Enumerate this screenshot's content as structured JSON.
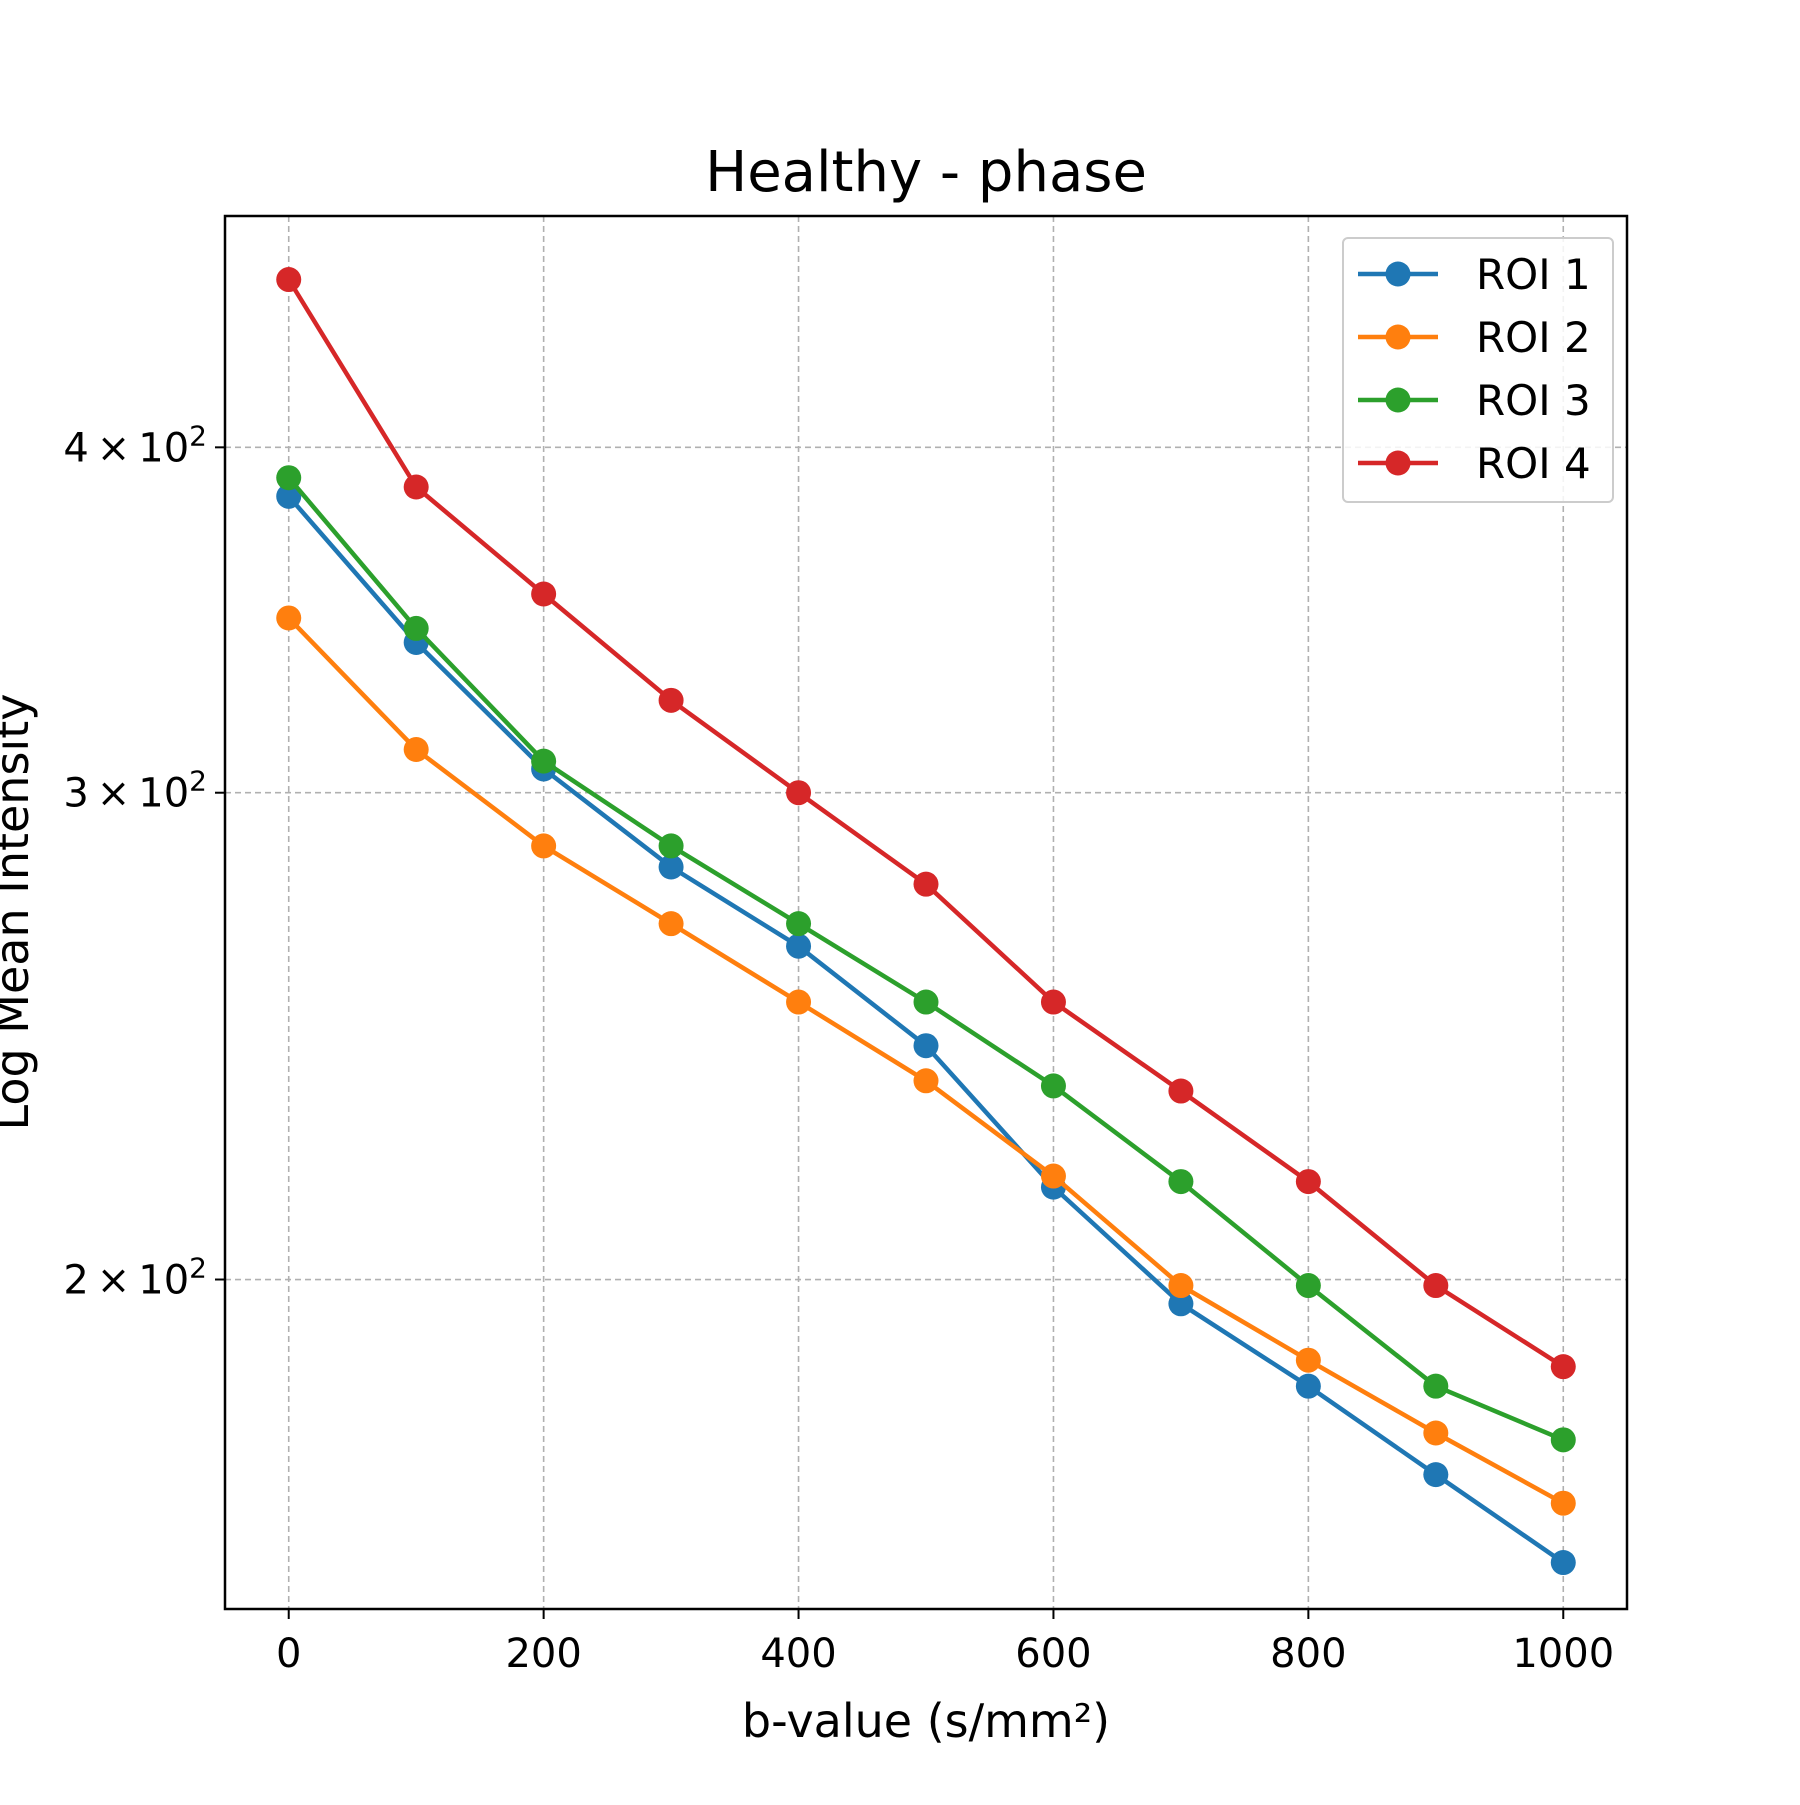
{
  "chart_data": {
    "type": "line",
    "title": "Healthy - phase",
    "xlabel": "b-value (s/mm²)",
    "ylabel": "Log Mean Intensity",
    "x": [
      0,
      100,
      200,
      300,
      400,
      500,
      600,
      700,
      800,
      900,
      1000
    ],
    "xlim": [
      -50,
      1050
    ],
    "ylim": [
      152,
      485
    ],
    "yscale": "log",
    "x_ticks": [
      0,
      200,
      400,
      600,
      800,
      1000
    ],
    "x_tick_labels": [
      "0",
      "200",
      "400",
      "600",
      "800",
      "1000"
    ],
    "y_ticks": [
      200,
      300,
      400
    ],
    "y_tick_labels": [
      {
        "mantissa": "2",
        "base": "10",
        "exp": "2"
      },
      {
        "mantissa": "3",
        "base": "10",
        "exp": "2"
      },
      {
        "mantissa": "4",
        "base": "10",
        "exp": "2"
      }
    ],
    "grid": true,
    "legend_position": "top-right",
    "series": [
      {
        "name": "ROI 1",
        "color": "#1f77b4",
        "values": [
          384,
          340,
          306,
          282,
          264,
          243,
          216,
          196,
          183,
          170,
          158
        ]
      },
      {
        "name": "ROI 2",
        "color": "#ff7f0e",
        "values": [
          347,
          311,
          287,
          269,
          252,
          236,
          218,
          199,
          187,
          176,
          166
        ]
      },
      {
        "name": "ROI 3",
        "color": "#2ca02c",
        "values": [
          390,
          344,
          308,
          287,
          269,
          252,
          235,
          217,
          199,
          183,
          175
        ]
      },
      {
        "name": "ROI 4",
        "color": "#d62728",
        "values": [
          460,
          387,
          354,
          324,
          300,
          278,
          252,
          234,
          217,
          199,
          186
        ]
      }
    ]
  }
}
